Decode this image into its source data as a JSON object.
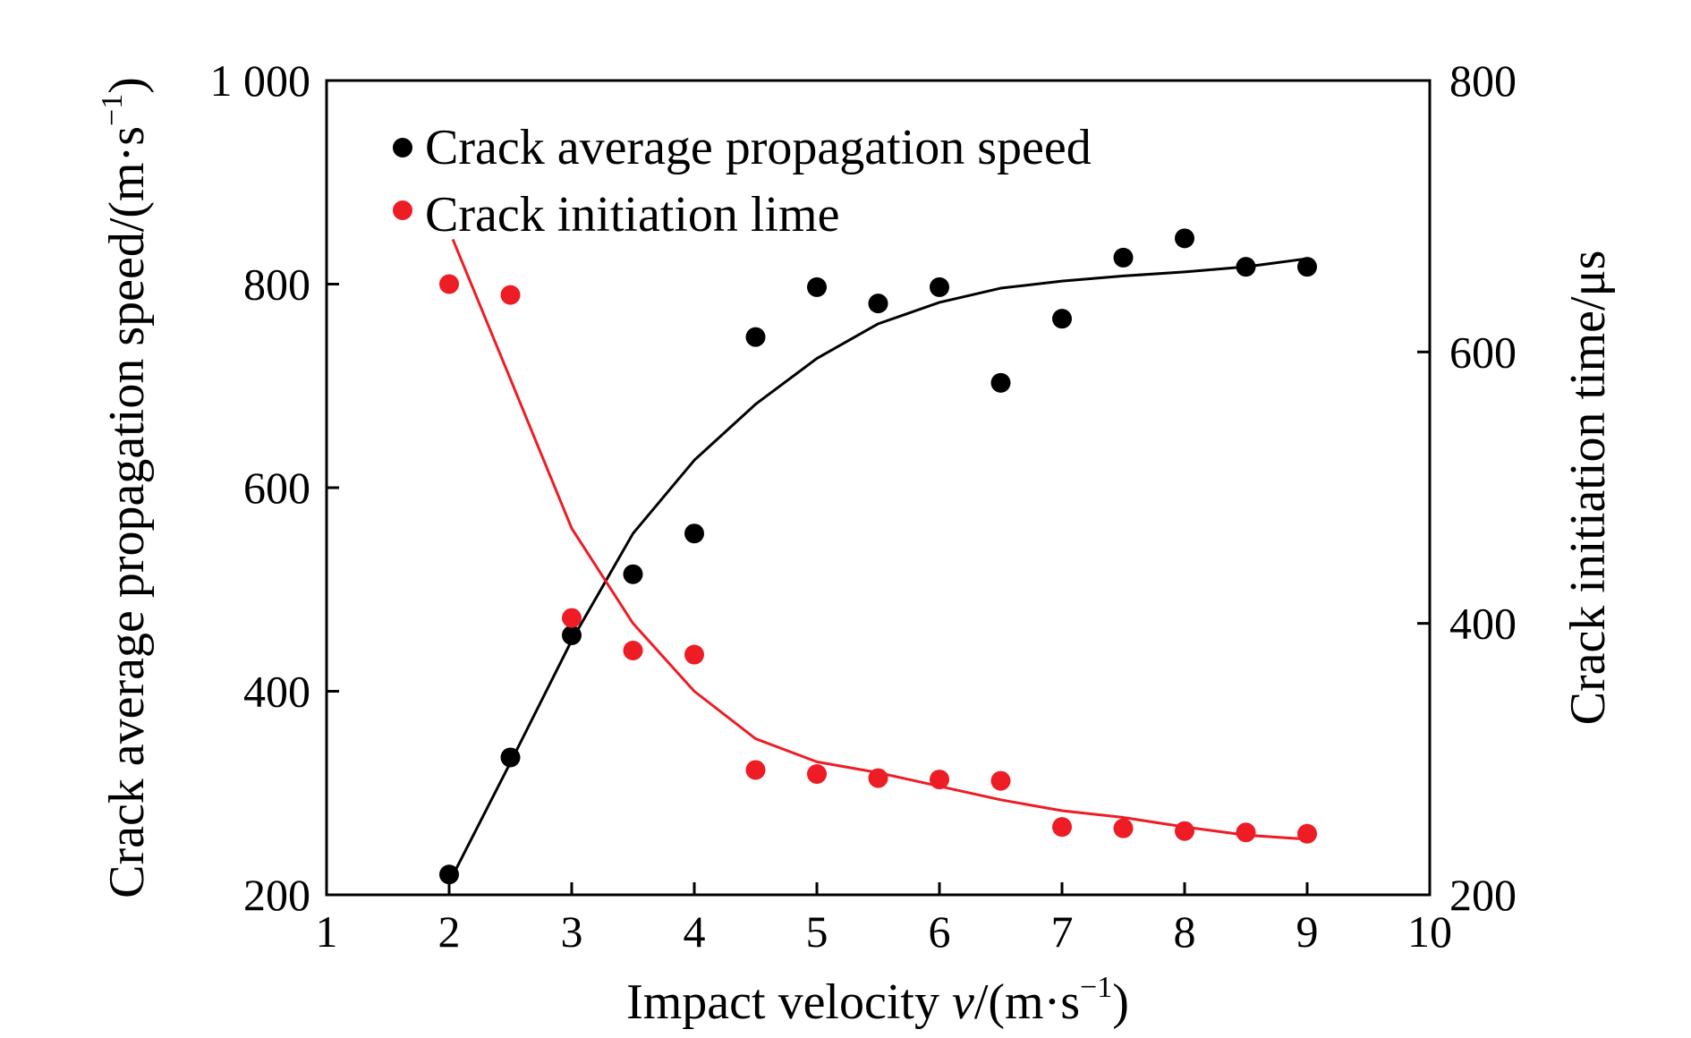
{
  "chart_data": {
    "type": "scatter",
    "x_axis": {
      "label_main": "Impact velocity ",
      "label_var": "v",
      "label_unit": "/(m·s",
      "label_sup": "−1",
      "label_close": ")",
      "range": [
        1,
        10
      ],
      "ticks": [
        "1",
        "2",
        "3",
        "4",
        "5",
        "6",
        "7",
        "8",
        "9",
        "10"
      ]
    },
    "y_left": {
      "label_main": "Crack average propagation speed/(m·s",
      "label_sup": "−1",
      "label_close": ")",
      "range": [
        200,
        1000
      ],
      "ticks": [
        "200",
        "400",
        "600",
        "800",
        "1 000"
      ]
    },
    "y_right": {
      "label": "Crack initiation time/μs",
      "range": [
        200,
        800
      ],
      "ticks": [
        "200",
        "400",
        "600",
        "800"
      ]
    },
    "legend_position": "top-left",
    "series": [
      {
        "name": "Crack average propagation speed",
        "axis": "left",
        "color": "#000000",
        "points": [
          [
            2,
            220
          ],
          [
            2.5,
            335
          ],
          [
            3,
            455
          ],
          [
            3.5,
            515
          ],
          [
            4,
            555
          ],
          [
            4.5,
            748
          ],
          [
            5,
            797
          ],
          [
            5.5,
            781
          ],
          [
            6,
            797
          ],
          [
            6.5,
            703
          ],
          [
            7,
            766
          ],
          [
            7.5,
            826
          ],
          [
            8,
            845
          ],
          [
            8.5,
            817
          ],
          [
            9,
            817
          ]
        ],
        "fit": [
          [
            2,
            212
          ],
          [
            2.5,
            330
          ],
          [
            3,
            450
          ],
          [
            3.5,
            555
          ],
          [
            4,
            627
          ],
          [
            4.5,
            682
          ],
          [
            5,
            727
          ],
          [
            5.5,
            761
          ],
          [
            6,
            782
          ],
          [
            6.5,
            796
          ],
          [
            7,
            803
          ],
          [
            7.5,
            808
          ],
          [
            8,
            812
          ],
          [
            8.5,
            817
          ],
          [
            9,
            825
          ]
        ]
      },
      {
        "name": "Crack initiation lime",
        "axis": "right",
        "color": "#ee1c24",
        "points": [
          [
            2,
            650
          ],
          [
            2.5,
            642
          ],
          [
            3,
            404
          ],
          [
            3.5,
            380
          ],
          [
            4,
            377
          ],
          [
            4.5,
            292
          ],
          [
            5,
            289
          ],
          [
            5.5,
            286
          ],
          [
            6,
            285
          ],
          [
            6.5,
            284
          ],
          [
            7,
            250
          ],
          [
            7.5,
            249
          ],
          [
            8,
            247
          ],
          [
            8.5,
            246
          ],
          [
            9,
            245
          ]
        ],
        "fit": [
          [
            2.03,
            683
          ],
          [
            2.5,
            580
          ],
          [
            3,
            470
          ],
          [
            3.5,
            400
          ],
          [
            4,
            350
          ],
          [
            4.5,
            315
          ],
          [
            5,
            298
          ],
          [
            5.5,
            290
          ],
          [
            6,
            280
          ],
          [
            6.5,
            270
          ],
          [
            7,
            262
          ],
          [
            7.5,
            257
          ],
          [
            8,
            250
          ],
          [
            8.5,
            244
          ],
          [
            9,
            241
          ]
        ]
      }
    ]
  }
}
